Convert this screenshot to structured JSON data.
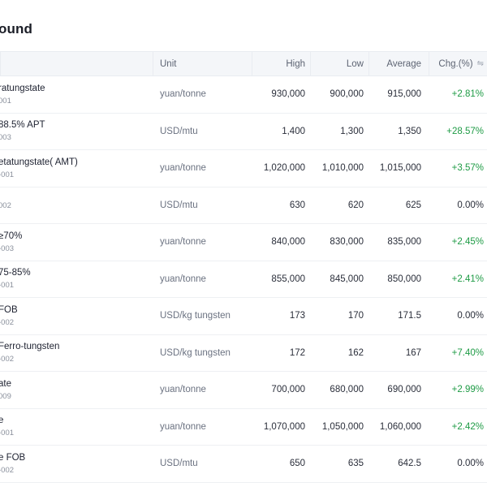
{
  "page": {
    "title": "ound"
  },
  "table": {
    "headers": {
      "unit": "Unit",
      "high": "High",
      "low": "Low",
      "average": "Average",
      "chg": "Chg.(%)"
    },
    "rows": [
      {
        "name": "ratungstate",
        "code": "001",
        "unit": "yuan/tonne",
        "high": "930,000",
        "low": "900,000",
        "average": "915,000",
        "chg": "+2.81%",
        "chg_type": "pos"
      },
      {
        "name": "88.5% APT",
        "code": "003",
        "unit": "USD/mtu",
        "high": "1,400",
        "low": "1,300",
        "average": "1,350",
        "chg": "+28.57%",
        "chg_type": "pos"
      },
      {
        "name": "etatungstate( AMT)",
        "code": "-001",
        "unit": "yuan/tonne",
        "high": "1,020,000",
        "low": "1,010,000",
        "average": "1,015,000",
        "chg": "+3.57%",
        "chg_type": "pos"
      },
      {
        "name": "",
        "code": "002",
        "unit": "USD/mtu",
        "high": "630",
        "low": "620",
        "average": "625",
        "chg": "0.00%",
        "chg_type": "zero"
      },
      {
        "name": "≥70%",
        "code": "-003",
        "unit": "yuan/tonne",
        "high": "840,000",
        "low": "830,000",
        "average": "835,000",
        "chg": "+2.45%",
        "chg_type": "pos"
      },
      {
        "name": "75-85%",
        "code": "-001",
        "unit": "yuan/tonne",
        "high": "855,000",
        "low": "845,000",
        "average": "850,000",
        "chg": "+2.41%",
        "chg_type": "pos"
      },
      {
        "name": "FOB",
        "code": "-002",
        "unit": "USD/kg tungsten",
        "high": "173",
        "low": "170",
        "average": "171.5",
        "chg": "0.00%",
        "chg_type": "zero"
      },
      {
        "name": " Ferro-tungsten",
        "code": "-002",
        "unit": "USD/kg tungsten",
        "high": "172",
        "low": "162",
        "average": "167",
        "chg": "+7.40%",
        "chg_type": "pos"
      },
      {
        "name": "ate",
        "code": "009",
        "unit": "yuan/tonne",
        "high": "700,000",
        "low": "680,000",
        "average": "690,000",
        "chg": "+2.99%",
        "chg_type": "pos"
      },
      {
        "name": "e",
        "code": "-001",
        "unit": "yuan/tonne",
        "high": "1,070,000",
        "low": "1,050,000",
        "average": "1,060,000",
        "chg": "+2.42%",
        "chg_type": "pos"
      },
      {
        "name": "e FOB",
        "code": "-002",
        "unit": "USD/mtu",
        "high": "650",
        "low": "635",
        "average": "642.5",
        "chg": "0.00%",
        "chg_type": "zero"
      }
    ]
  },
  "icons": {
    "sort": "sort-arrows-icon"
  },
  "colors": {
    "positive": "#1e9b45",
    "header_bg": "#f4f6f9"
  }
}
